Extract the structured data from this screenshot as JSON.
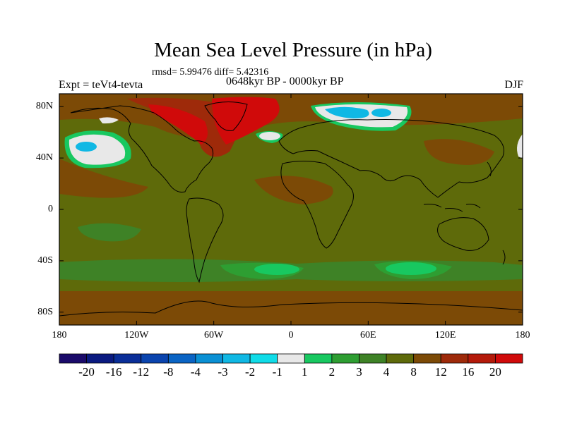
{
  "title": "Mean Sea Level Pressure (in hPa)",
  "stats": "rmsd= 5.99476 diff= 5.42316",
  "period": "0648kyr BP - 0000kyr BP",
  "experiment": "Expt = teVt4-tevta",
  "season": "DJF",
  "lat_labels": [
    "80N",
    "40N",
    "0",
    "40S",
    "80S"
  ],
  "lon_labels": [
    "180",
    "120W",
    "60W",
    "0",
    "60E",
    "120E",
    "180"
  ],
  "colorbar": {
    "labels": [
      "-20",
      "-16",
      "-12",
      "-8",
      "-4",
      "-3",
      "-2",
      "-1",
      "1",
      "2",
      "3",
      "4",
      "8",
      "12",
      "16",
      "20"
    ],
    "colors": [
      "#1a0a6a",
      "#0a1a80",
      "#0a2e98",
      "#0a44ae",
      "#0a64c4",
      "#0a90d4",
      "#10b8e4",
      "#10dce8",
      "#e8e8e8",
      "#18c860",
      "#2e9e32",
      "#3e8226",
      "#5e6a0a",
      "#7c4a06",
      "#9e2a0a",
      "#b41a0a",
      "#d00a0a"
    ]
  },
  "chart_data": {
    "type": "heatmap",
    "variable": "Mean Sea Level Pressure difference",
    "units": "hPa",
    "x_range": [
      -180,
      180
    ],
    "y_range": [
      -90,
      90
    ],
    "levels": [
      -20,
      -16,
      -12,
      -8,
      -4,
      -3,
      -2,
      -1,
      1,
      2,
      3,
      4,
      8,
      12,
      16,
      20
    ],
    "background_level_range": [
      4,
      8
    ],
    "features": [
      {
        "region": "North Pacific",
        "level_range": [
          -4,
          -1
        ]
      },
      {
        "region": "North Atlantic near 45N",
        "level_range": [
          -1,
          1
        ]
      },
      {
        "region": "Arctic Siberia",
        "level_range": [
          -3,
          1
        ]
      },
      {
        "region": "Greenland",
        "level_range": [
          12,
          20
        ]
      },
      {
        "region": "Southern Ocean 45S",
        "level_range": [
          1,
          3
        ]
      },
      {
        "region": "Antarctic coast",
        "level_range": [
          8,
          12
        ]
      }
    ]
  }
}
